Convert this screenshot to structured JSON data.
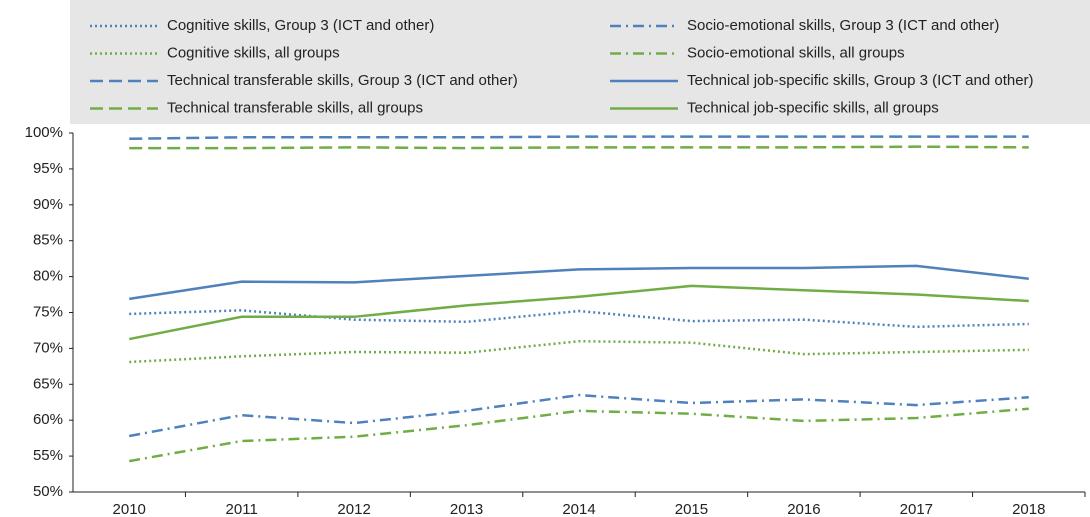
{
  "chart_data": {
    "type": "line",
    "categories": [
      "2010",
      "2011",
      "2012",
      "2013",
      "2014",
      "2015",
      "2016",
      "2017",
      "2018"
    ],
    "ylim": [
      50,
      100
    ],
    "yticks": [
      {
        "value": 50,
        "label": "50%"
      },
      {
        "value": 55,
        "label": "55%"
      },
      {
        "value": 60,
        "label": "60%"
      },
      {
        "value": 65,
        "label": "65%"
      },
      {
        "value": 70,
        "label": "70%"
      },
      {
        "value": 75,
        "label": "75%"
      },
      {
        "value": 80,
        "label": "80%"
      },
      {
        "value": 85,
        "label": "85%"
      },
      {
        "value": 90,
        "label": "90%"
      },
      {
        "value": 95,
        "label": "95%"
      },
      {
        "value": 100,
        "label": "100%"
      }
    ],
    "grid": false,
    "legend": "top",
    "series": [
      {
        "name": "Cognitive skills, Group 3 (ICT and other)",
        "color": "#4f81bd",
        "dash": "dotted",
        "values": [
          74.8,
          75.3,
          74.0,
          73.7,
          75.2,
          73.8,
          74.0,
          73.0,
          73.4
        ]
      },
      {
        "name": "Socio-emotional skills, Group 3 (ICT and other)",
        "color": "#4f81bd",
        "dash": "dashdot",
        "values": [
          57.8,
          60.7,
          59.6,
          61.3,
          63.5,
          62.4,
          62.9,
          62.1,
          63.2
        ]
      },
      {
        "name": "Cognitive skills, all groups",
        "color": "#70ad47",
        "dash": "dotted",
        "values": [
          68.1,
          68.9,
          69.5,
          69.4,
          71.0,
          70.8,
          69.2,
          69.5,
          69.8
        ]
      },
      {
        "name": "Socio-emotional skills, all groups",
        "color": "#70ad47",
        "dash": "dashdot",
        "values": [
          54.3,
          57.1,
          57.7,
          59.3,
          61.3,
          60.9,
          59.9,
          60.3,
          61.6
        ]
      },
      {
        "name": "Technical transferable skills, Group 3 (ICT and other)",
        "color": "#4f81bd",
        "dash": "dashed",
        "values": [
          99.2,
          99.4,
          99.4,
          99.4,
          99.5,
          99.5,
          99.5,
          99.5,
          99.5
        ]
      },
      {
        "name": "Technical job-specific skills, Group 3 (ICT and other)",
        "color": "#4f81bd",
        "dash": "solid",
        "values": [
          76.9,
          79.3,
          79.2,
          80.1,
          81.0,
          81.2,
          81.2,
          81.5,
          79.7
        ]
      },
      {
        "name": "Technical transferable skills, all groups",
        "color": "#70ad47",
        "dash": "dashed",
        "values": [
          97.9,
          97.9,
          98.0,
          97.9,
          98.0,
          98.0,
          98.0,
          98.1,
          98.0
        ]
      },
      {
        "name": "Technical job-specific skills, all groups",
        "color": "#70ad47",
        "dash": "solid",
        "values": [
          71.3,
          74.4,
          74.4,
          76.0,
          77.2,
          78.7,
          78.1,
          77.5,
          76.6
        ]
      }
    ]
  }
}
